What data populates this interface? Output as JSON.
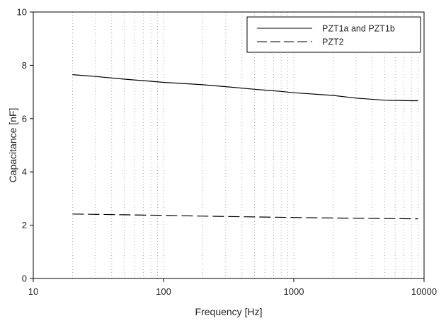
{
  "chart_data": {
    "type": "line",
    "xlabel": "Frequency [Hz]",
    "ylabel": "Capacitance [nF]",
    "xscale": "log",
    "xlim": [
      10,
      10000
    ],
    "ylim": [
      0,
      10
    ],
    "x_ticks": [
      10,
      100,
      1000,
      10000
    ],
    "x_tick_labels": [
      "10",
      "100",
      "1000",
      "10000"
    ],
    "y_ticks": [
      0,
      2,
      4,
      6,
      8,
      10
    ],
    "y_tick_labels": [
      "0",
      "2",
      "4",
      "6",
      "8",
      "10"
    ],
    "grid": "vertical dotted lines at log minor ticks from 20 Hz",
    "legend_position": "top-right",
    "series": [
      {
        "name": "PZT1a and PZT1b",
        "style": "solid",
        "color": "#000000",
        "x": [
          20,
          30,
          50,
          80,
          100,
          200,
          300,
          500,
          800,
          1000,
          2000,
          3000,
          5000,
          8000,
          9000
        ],
        "y": [
          7.65,
          7.58,
          7.48,
          7.4,
          7.36,
          7.27,
          7.2,
          7.1,
          7.02,
          6.97,
          6.87,
          6.77,
          6.69,
          6.67,
          6.67
        ]
      },
      {
        "name": "PZT2",
        "style": "dashed",
        "color": "#000000",
        "x": [
          20,
          50,
          100,
          200,
          500,
          1000,
          2000,
          5000,
          9000
        ],
        "y": [
          2.42,
          2.39,
          2.37,
          2.34,
          2.31,
          2.29,
          2.27,
          2.25,
          2.24
        ]
      }
    ]
  }
}
